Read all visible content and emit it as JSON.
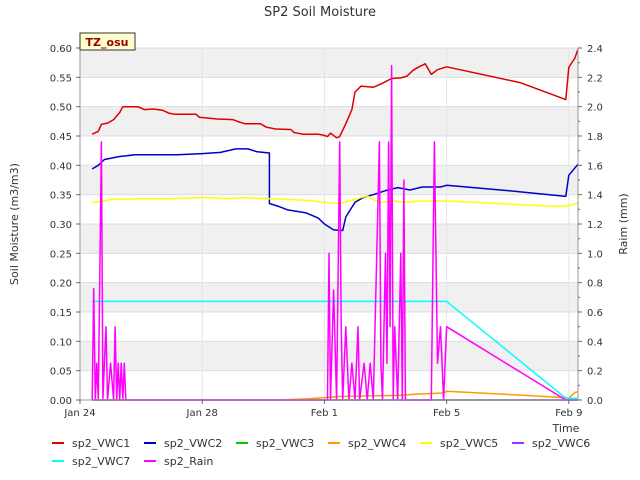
{
  "chart_data": {
    "type": "line",
    "title": "SP2 Soil Moisture",
    "site_label": "TZ_osu",
    "xlabel": "Time",
    "ylabel_left": "Soil Moisture (m3/m3)",
    "ylabel_right": "Raim (mm)",
    "x_range_days": [
      0,
      16.3
    ],
    "ylim_left": [
      0,
      0.6
    ],
    "ylim_right": [
      0,
      2.4
    ],
    "x_ticks": [
      {
        "day": 0,
        "label": "Jan 24"
      },
      {
        "day": 4,
        "label": "Jan 28"
      },
      {
        "day": 8,
        "label": "Feb 1"
      },
      {
        "day": 12,
        "label": "Feb 5"
      },
      {
        "day": 16,
        "label": "Feb 9"
      }
    ],
    "y_ticks_left": [
      "0.00",
      "0.05",
      "0.10",
      "0.15",
      "0.20",
      "0.25",
      "0.30",
      "0.35",
      "0.40",
      "0.45",
      "0.50",
      "0.55",
      "0.60"
    ],
    "y_ticks_right": [
      "0.0",
      "0.2",
      "0.4",
      "0.6",
      "0.8",
      "1.0",
      "1.2",
      "1.4",
      "1.6",
      "1.8",
      "2.0",
      "2.2",
      "2.4"
    ],
    "series": [
      {
        "name": "sp2_VWC1",
        "color": "#dd0000",
        "axis": "left",
        "points": [
          [
            0.4,
            0.453
          ],
          [
            0.6,
            0.458
          ],
          [
            0.7,
            0.47
          ],
          [
            0.9,
            0.472
          ],
          [
            1.1,
            0.478
          ],
          [
            1.3,
            0.49
          ],
          [
            1.4,
            0.5
          ],
          [
            1.9,
            0.5
          ],
          [
            2.1,
            0.495
          ],
          [
            2.4,
            0.496
          ],
          [
            2.7,
            0.494
          ],
          [
            2.9,
            0.489
          ],
          [
            3.1,
            0.487
          ],
          [
            3.8,
            0.487
          ],
          [
            3.9,
            0.482
          ],
          [
            4.5,
            0.479
          ],
          [
            5.0,
            0.478
          ],
          [
            5.2,
            0.474
          ],
          [
            5.4,
            0.471
          ],
          [
            5.9,
            0.471
          ],
          [
            6.1,
            0.465
          ],
          [
            6.4,
            0.462
          ],
          [
            6.9,
            0.461
          ],
          [
            7.0,
            0.456
          ],
          [
            7.3,
            0.453
          ],
          [
            7.8,
            0.453
          ],
          [
            8.0,
            0.451
          ],
          [
            8.1,
            0.449
          ],
          [
            8.2,
            0.455
          ],
          [
            8.4,
            0.447
          ],
          [
            8.5,
            0.449
          ],
          [
            8.7,
            0.471
          ],
          [
            8.9,
            0.495
          ],
          [
            9.0,
            0.525
          ],
          [
            9.2,
            0.535
          ],
          [
            9.6,
            0.533
          ],
          [
            9.9,
            0.54
          ],
          [
            10.2,
            0.548
          ],
          [
            10.5,
            0.549
          ],
          [
            10.7,
            0.552
          ],
          [
            10.9,
            0.562
          ],
          [
            11.1,
            0.568
          ],
          [
            11.3,
            0.573
          ],
          [
            11.5,
            0.555
          ],
          [
            11.7,
            0.563
          ],
          [
            12.0,
            0.568
          ],
          [
            14.4,
            0.541
          ],
          [
            15.9,
            0.512
          ],
          [
            16.0,
            0.567
          ],
          [
            16.2,
            0.583
          ],
          [
            16.3,
            0.598
          ]
        ]
      },
      {
        "name": "sp2_VWC2",
        "color": "#0000cc",
        "axis": "left",
        "points": [
          [
            0.4,
            0.394
          ],
          [
            0.6,
            0.4
          ],
          [
            0.8,
            0.41
          ],
          [
            1.3,
            0.415
          ],
          [
            1.8,
            0.418
          ],
          [
            2.4,
            0.418
          ],
          [
            3.2,
            0.418
          ],
          [
            4.0,
            0.42
          ],
          [
            4.6,
            0.422
          ],
          [
            5.1,
            0.428
          ],
          [
            5.5,
            0.428
          ],
          [
            5.8,
            0.423
          ],
          [
            6.2,
            0.421
          ],
          [
            6.2,
            0.335
          ],
          [
            6.5,
            0.33
          ],
          [
            6.8,
            0.324
          ],
          [
            7.4,
            0.319
          ],
          [
            7.8,
            0.31
          ],
          [
            8.0,
            0.3
          ],
          [
            8.3,
            0.29
          ],
          [
            8.6,
            0.289
          ],
          [
            8.7,
            0.312
          ],
          [
            9.0,
            0.337
          ],
          [
            9.3,
            0.346
          ],
          [
            9.6,
            0.35
          ],
          [
            10.0,
            0.357
          ],
          [
            10.4,
            0.362
          ],
          [
            10.8,
            0.358
          ],
          [
            11.2,
            0.363
          ],
          [
            11.8,
            0.363
          ],
          [
            12.0,
            0.366
          ],
          [
            14.0,
            0.357
          ],
          [
            15.9,
            0.347
          ],
          [
            16.0,
            0.383
          ],
          [
            16.3,
            0.402
          ]
        ]
      },
      {
        "name": "sp2_VWC3",
        "color": "#00cc00",
        "axis": "left",
        "points": [
          [
            0.4,
            0.0
          ],
          [
            16.3,
            0.0
          ]
        ]
      },
      {
        "name": "sp2_VWC4",
        "color": "#ff9900",
        "axis": "left",
        "points": [
          [
            0.4,
            0.0
          ],
          [
            6.5,
            0.0
          ],
          [
            7.5,
            0.002
          ],
          [
            8.5,
            0.006
          ],
          [
            9.5,
            0.007
          ],
          [
            10.5,
            0.008
          ],
          [
            11.0,
            0.01
          ],
          [
            11.9,
            0.012
          ],
          [
            12.0,
            0.015
          ],
          [
            14.5,
            0.008
          ],
          [
            15.9,
            0.004
          ],
          [
            16.0,
            0.003
          ],
          [
            16.2,
            0.013
          ],
          [
            16.3,
            0.014
          ]
        ]
      },
      {
        "name": "sp2_VWC5",
        "color": "#ffff00",
        "axis": "left",
        "points": [
          [
            0.4,
            0.337
          ],
          [
            0.8,
            0.339
          ],
          [
            1.0,
            0.342
          ],
          [
            2.0,
            0.343
          ],
          [
            3.0,
            0.343
          ],
          [
            3.9,
            0.345
          ],
          [
            4.2,
            0.345
          ],
          [
            4.8,
            0.343
          ],
          [
            5.3,
            0.345
          ],
          [
            6.2,
            0.343
          ],
          [
            6.8,
            0.342
          ],
          [
            7.5,
            0.34
          ],
          [
            8.0,
            0.337
          ],
          [
            8.5,
            0.335
          ],
          [
            9.0,
            0.342
          ],
          [
            9.4,
            0.348
          ],
          [
            9.8,
            0.336
          ],
          [
            10.2,
            0.34
          ],
          [
            10.6,
            0.337
          ],
          [
            11.0,
            0.339
          ],
          [
            11.6,
            0.339
          ],
          [
            12.2,
            0.339
          ],
          [
            14.0,
            0.334
          ],
          [
            15.6,
            0.33
          ],
          [
            16.0,
            0.331
          ],
          [
            16.3,
            0.336
          ]
        ]
      },
      {
        "name": "sp2_VWC6",
        "color": "#9933ff",
        "axis": "left",
        "points": [
          [
            0.4,
            0.0
          ],
          [
            16.3,
            0.0
          ]
        ]
      },
      {
        "name": "sp2_VWC7",
        "color": "#00ffff",
        "axis": "left",
        "points": [
          [
            0.4,
            0.168
          ],
          [
            12.0,
            0.168
          ],
          [
            15.9,
            0.003
          ],
          [
            16.3,
            0.003
          ]
        ]
      },
      {
        "name": "sp2_Rain",
        "color": "#ff00ff",
        "axis": "right",
        "points": [
          [
            0.4,
            0.0
          ],
          [
            0.45,
            0.76
          ],
          [
            0.5,
            0.0
          ],
          [
            0.55,
            0.25
          ],
          [
            0.6,
            0.0
          ],
          [
            0.7,
            1.76
          ],
          [
            0.75,
            0.0
          ],
          [
            0.8,
            0.25
          ],
          [
            0.85,
            0.5
          ],
          [
            0.9,
            0.0
          ],
          [
            1.0,
            0.25
          ],
          [
            1.1,
            0.0
          ],
          [
            1.15,
            0.5
          ],
          [
            1.2,
            0.0
          ],
          [
            1.25,
            0.25
          ],
          [
            1.3,
            0.0
          ],
          [
            1.35,
            0.25
          ],
          [
            1.4,
            0.0
          ],
          [
            1.45,
            0.25
          ],
          [
            1.5,
            0.0
          ],
          [
            4.0,
            0.0
          ],
          [
            8.1,
            0.0
          ],
          [
            8.15,
            1.0
          ],
          [
            8.2,
            0.0
          ],
          [
            8.3,
            0.75
          ],
          [
            8.4,
            0.0
          ],
          [
            8.5,
            1.76
          ],
          [
            8.55,
            0.5
          ],
          [
            8.6,
            0.0
          ],
          [
            8.7,
            0.5
          ],
          [
            8.8,
            0.0
          ],
          [
            8.9,
            0.25
          ],
          [
            9.0,
            0.0
          ],
          [
            9.1,
            0.5
          ],
          [
            9.15,
            0.0
          ],
          [
            9.3,
            0.25
          ],
          [
            9.4,
            0.0
          ],
          [
            9.5,
            0.25
          ],
          [
            9.6,
            0.0
          ],
          [
            9.8,
            1.76
          ],
          [
            9.85,
            0.25
          ],
          [
            9.9,
            0.0
          ],
          [
            10.0,
            1.0
          ],
          [
            10.05,
            0.25
          ],
          [
            10.1,
            1.76
          ],
          [
            10.15,
            0.5
          ],
          [
            10.2,
            2.28
          ],
          [
            10.25,
            0.0
          ],
          [
            10.3,
            0.5
          ],
          [
            10.4,
            0.0
          ],
          [
            10.5,
            1.0
          ],
          [
            10.55,
            0.0
          ],
          [
            10.6,
            1.5
          ],
          [
            10.65,
            0.0
          ],
          [
            11.0,
            0.0
          ],
          [
            11.5,
            0.0
          ],
          [
            11.6,
            1.76
          ],
          [
            11.7,
            0.25
          ],
          [
            11.8,
            0.5
          ],
          [
            11.9,
            0.0
          ],
          [
            12.0,
            0.5
          ],
          [
            15.9,
            0.0
          ],
          [
            16.3,
            0.0
          ]
        ]
      }
    ],
    "legend_position": "bottom",
    "grid": "horizontal-bands"
  }
}
